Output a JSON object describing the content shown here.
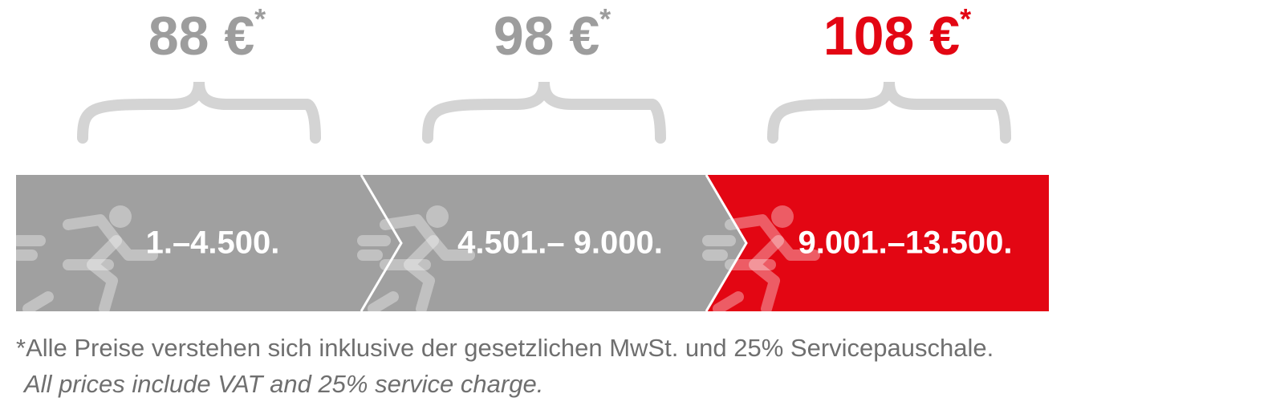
{
  "tiers": [
    {
      "price": "88 €",
      "mark": "*",
      "range": "1.–4.500.",
      "color": "#a0a0a0",
      "price_color": "#9d9d9d"
    },
    {
      "price": "98 €",
      "mark": "*",
      "range": "4.501.– 9.000.",
      "color": "#a0a0a0",
      "price_color": "#9d9d9d"
    },
    {
      "price": "108 €",
      "mark": "*",
      "range": "9.001.–13.500.",
      "color": "#e30613",
      "price_color": "#e30613"
    }
  ],
  "footnote": {
    "line1": "*Alle Preise verstehen sich inklusive der gesetzlichen MwSt. und 25% Servicepauschale.",
    "line2": "All prices include VAT and 25% service charge."
  }
}
